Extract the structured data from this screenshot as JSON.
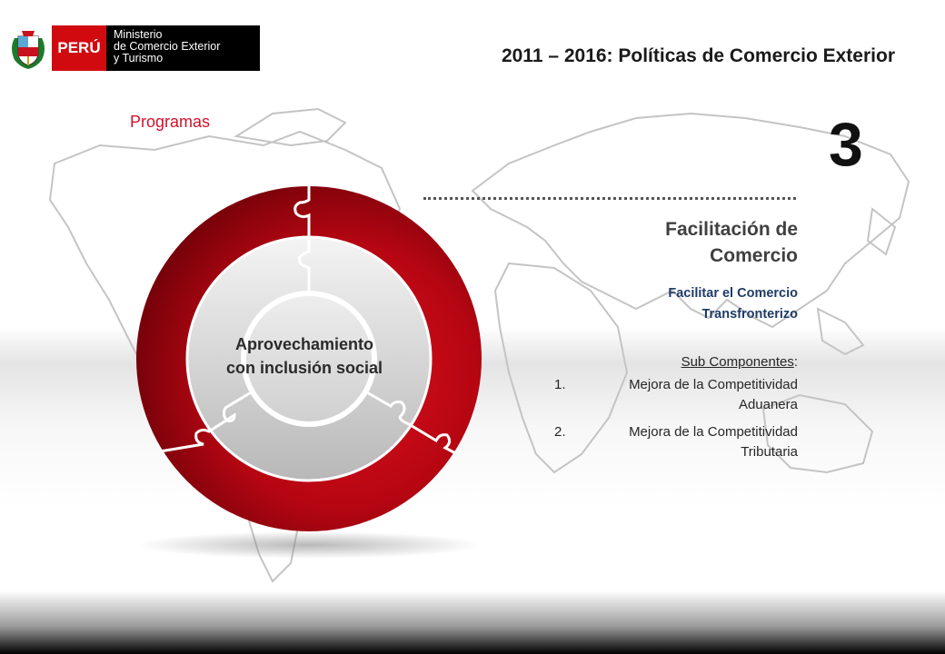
{
  "header": {
    "logo_peru": "PERÚ",
    "logo_ministry_lines": [
      "Ministerio",
      "de Comercio Exterior",
      "y Turismo"
    ],
    "title": "2011 – 2016: Políticas de Comercio Exterior"
  },
  "section_label": "Programas",
  "number": "3",
  "panel": {
    "heading_lines": [
      "Facilitación de",
      "Comercio"
    ],
    "subtitle_lines": [
      "Facilitar el Comercio",
      "Transfronterizo"
    ],
    "subcomponents_label": "Sub Componentes",
    "subcomponents_colon": ":",
    "items": [
      {
        "number": "1.",
        "text": "Mejora de la Competitividad Aduanera"
      },
      {
        "number": "2.",
        "text": "Mejora de la Competitividad Tributaria"
      }
    ]
  },
  "diagram": {
    "center_lines": [
      "Aprovechamiento",
      "con inclusión social"
    ]
  },
  "colors": {
    "accent_red": "#c8101e",
    "dark_red": "#6b0008",
    "navy": "#1f3b66"
  },
  "icons": [
    "coat-of-arms-icon",
    "world-map-icon"
  ]
}
